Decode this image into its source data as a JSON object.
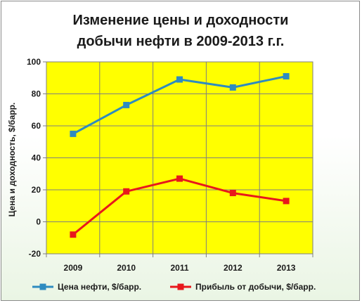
{
  "chart_data": {
    "type": "line",
    "title_lines": [
      "Изменение цены и доходности",
      "добычи нефти в 2009-2013 г.г."
    ],
    "xlabel": "",
    "ylabel": "Цена и доходность, $/барр.",
    "categories": [
      "2009",
      "2010",
      "2011",
      "2012",
      "2013"
    ],
    "ylim": [
      -20,
      100
    ],
    "yticks": [
      -20,
      0,
      20,
      40,
      60,
      80,
      100
    ],
    "grid": true,
    "legend_position": "bottom",
    "plot_background": "#ffff00",
    "series": [
      {
        "name": "Цена нефти, $/барр.",
        "color": "#2e8bc0",
        "values": [
          55,
          73,
          89,
          84,
          91
        ]
      },
      {
        "name": "Прибыль от добычи, $/барр.",
        "color": "#e8181c",
        "values": [
          -8,
          19,
          27,
          18,
          13
        ]
      }
    ]
  }
}
